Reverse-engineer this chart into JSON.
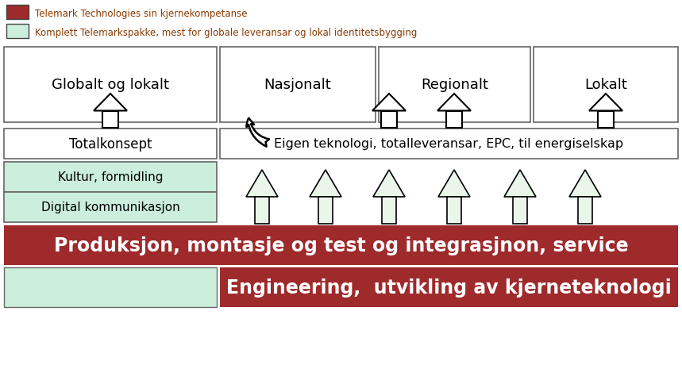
{
  "fig_width": 8.59,
  "fig_height": 4.85,
  "dpi": 100,
  "bg_color": "#ffffff",
  "red_color": "#9e2a2b",
  "light_green": "#cceedd",
  "legend1_text": "Telemark Technologies sin kjernekompetanse",
  "legend2_text": "Komplett Telemarkspakke, mest for globale leveransar og lokal identitetsbygging",
  "legend_text_color": "#8b3a00",
  "box_top_labels": [
    "Globalt og lokalt",
    "Nasjonalt",
    "Regionalt",
    "Lokalt"
  ],
  "mid_left_label": "Totalkonsept",
  "mid_right_label": "Eigen teknologi, totalleveransar, EPC, til energiselskap",
  "green_box1": "Kultur, formidling",
  "green_box2": "Digital kommunikasjon",
  "bottom_bar1": "Produksjon, montasje og test og integrasjnon, service",
  "bottom_bar2": "Engineering,  utvikling av kjerneteknologi"
}
